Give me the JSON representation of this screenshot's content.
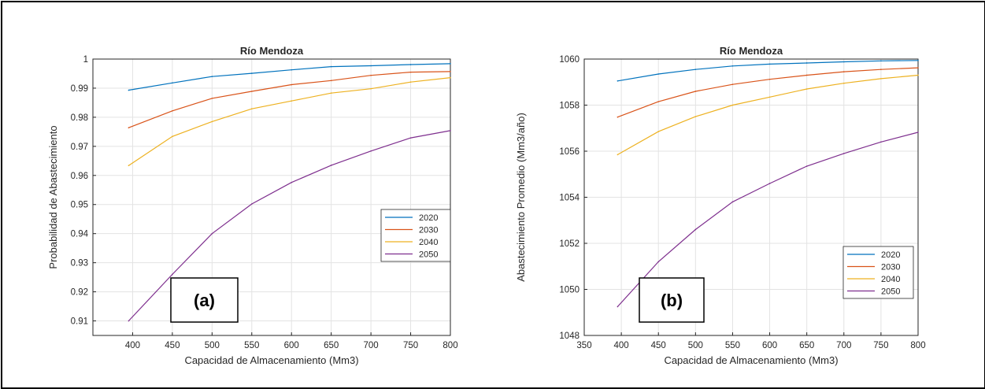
{
  "chart_data": [
    {
      "type": "line",
      "title": "Río Mendoza",
      "xlabel": "Capacidad de Almacenamiento (Mm3)",
      "ylabel": "Probabilidad de Abastecimiento",
      "panel_label": "(a)",
      "xlim": [
        350,
        800
      ],
      "ylim": [
        0.905,
        1.0
      ],
      "xticks": [
        400,
        450,
        500,
        550,
        600,
        650,
        700,
        750,
        800
      ],
      "yticks": [
        0.91,
        0.92,
        0.93,
        0.94,
        0.95,
        0.96,
        0.97,
        0.98,
        0.99,
        1
      ],
      "ytick_labels": [
        "0.91",
        "0.92",
        "0.93",
        "0.94",
        "0.95",
        "0.96",
        "0.97",
        "0.98",
        "0.99",
        "1"
      ],
      "grid": true,
      "legend_position": "lower-right",
      "x": [
        395,
        450,
        500,
        550,
        600,
        650,
        700,
        750,
        800
      ],
      "series": [
        {
          "name": "2020",
          "color": "#0072BD",
          "values": [
            0.9893,
            0.9918,
            0.994,
            0.9951,
            0.9963,
            0.9974,
            0.9977,
            0.9981,
            0.9984
          ]
        },
        {
          "name": "2030",
          "color": "#D95319",
          "values": [
            0.9764,
            0.9822,
            0.9865,
            0.9889,
            0.9912,
            0.9926,
            0.9944,
            0.9955,
            0.9957
          ]
        },
        {
          "name": "2040",
          "color": "#EDB120",
          "values": [
            0.9634,
            0.9734,
            0.9785,
            0.9829,
            0.9856,
            0.9883,
            0.9898,
            0.9921,
            0.9936
          ]
        },
        {
          "name": "2050",
          "color": "#7E2F8E",
          "values": [
            0.91,
            0.926,
            0.94,
            0.9502,
            0.9576,
            0.9635,
            0.9684,
            0.9729,
            0.9754
          ]
        }
      ]
    },
    {
      "type": "line",
      "title": "Río Mendoza",
      "xlabel": "Capacidad de Almacenamiento (Mm3)",
      "ylabel": "Abastecimiento Promedio (Mm3/año)",
      "panel_label": "(b)",
      "xlim": [
        350,
        800
      ],
      "ylim": [
        1048,
        1060
      ],
      "xticks": [
        350,
        400,
        450,
        500,
        550,
        600,
        650,
        700,
        750,
        800
      ],
      "yticks": [
        1048,
        1050,
        1052,
        1054,
        1056,
        1058,
        1060
      ],
      "ytick_labels": [
        "1048",
        "1050",
        "1052",
        "1054",
        "1056",
        "1058",
        "1060"
      ],
      "grid": true,
      "legend_position": "lower-right",
      "x": [
        395,
        450,
        500,
        550,
        600,
        650,
        700,
        750,
        800
      ],
      "series": [
        {
          "name": "2020",
          "color": "#0072BD",
          "values": [
            1059.05,
            1059.35,
            1059.55,
            1059.7,
            1059.78,
            1059.83,
            1059.88,
            1059.92,
            1059.94
          ]
        },
        {
          "name": "2030",
          "color": "#D95319",
          "values": [
            1057.48,
            1058.15,
            1058.6,
            1058.9,
            1059.12,
            1059.3,
            1059.45,
            1059.55,
            1059.62
          ]
        },
        {
          "name": "2040",
          "color": "#EDB120",
          "values": [
            1055.85,
            1056.85,
            1057.5,
            1058.0,
            1058.35,
            1058.7,
            1058.95,
            1059.15,
            1059.3
          ]
        },
        {
          "name": "2050",
          "color": "#7E2F8E",
          "values": [
            1049.25,
            1051.2,
            1052.6,
            1053.8,
            1054.6,
            1055.35,
            1055.9,
            1056.4,
            1056.82
          ]
        }
      ]
    }
  ]
}
